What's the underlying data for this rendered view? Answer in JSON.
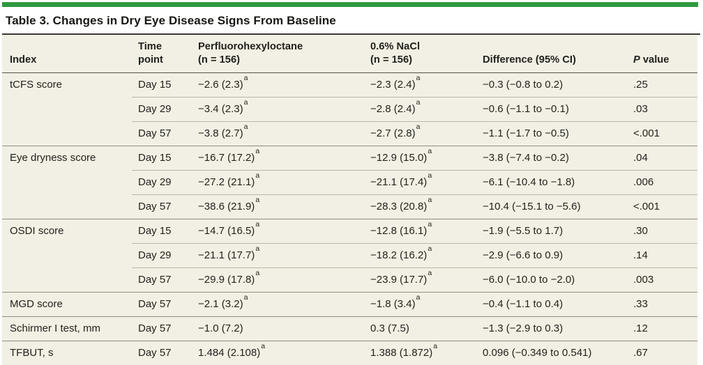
{
  "colors": {
    "accent_green": "#2e9a3f",
    "table_background": "#f2efe4",
    "bottom_rule": "#22201b"
  },
  "table": {
    "title": "Table 3. Changes in Dry Eye Disease Signs From Baseline",
    "header": {
      "index": "Index",
      "time": [
        "Time",
        "point"
      ],
      "drug": [
        "Perfluorohexyloctane",
        "(n = 156)"
      ],
      "nacl": [
        "0.6% NaCl",
        "(n = 156)"
      ],
      "diff": "Difference (95% CI)",
      "p_italic": "P",
      "p_rest": "value"
    },
    "footnote_marker": "a",
    "rows": [
      {
        "group_start": true,
        "index": "tCFS score",
        "time": "Day 15",
        "drug": "−2.6 (2.3)",
        "drug_sup": "a",
        "nacl": "−2.3 (2.4)",
        "nacl_sup": "a",
        "diff": "−0.3 (−0.8 to 0.2)",
        "p": ".25"
      },
      {
        "group_start": false,
        "index": "",
        "time": "Day 29",
        "drug": "−3.4 (2.3)",
        "drug_sup": "a",
        "nacl": "−2.8 (2.4)",
        "nacl_sup": "a",
        "diff": "−0.6 (−1.1 to −0.1)",
        "p": ".03"
      },
      {
        "group_start": false,
        "index": "",
        "time": "Day 57",
        "drug": "−3.8 (2.7)",
        "drug_sup": "a",
        "nacl": "−2.7 (2.8)",
        "nacl_sup": "a",
        "diff": "−1.1 (−1.7 to −0.5)",
        "p": "<.001"
      },
      {
        "group_start": true,
        "index": "Eye dryness score",
        "time": "Day 15",
        "drug": "−16.7 (17.2)",
        "drug_sup": "a",
        "nacl": "−12.9 (15.0)",
        "nacl_sup": "a",
        "diff": "−3.8 (−7.4 to −0.2)",
        "p": ".04"
      },
      {
        "group_start": false,
        "index": "",
        "time": "Day 29",
        "drug": "−27.2 (21.1)",
        "drug_sup": "a",
        "nacl": "−21.1 (17.4)",
        "nacl_sup": "a",
        "diff": "−6.1 (−10.4 to −1.8)",
        "p": ".006"
      },
      {
        "group_start": false,
        "index": "",
        "time": "Day 57",
        "drug": "−38.6 (21.9)",
        "drug_sup": "a",
        "nacl": "−28.3 (20.8)",
        "nacl_sup": "a",
        "diff": "−10.4 (−15.1 to −5.6)",
        "p": "<.001"
      },
      {
        "group_start": true,
        "index": "OSDI score",
        "time": "Day 15",
        "drug": "−14.7 (16.5)",
        "drug_sup": "a",
        "nacl": "−12.8 (16.1)",
        "nacl_sup": "a",
        "diff": "−1.9 (−5.5 to 1.7)",
        "p": ".30"
      },
      {
        "group_start": false,
        "index": "",
        "time": "Day 29",
        "drug": "−21.1 (17.7)",
        "drug_sup": "a",
        "nacl": "−18.2 (16.2)",
        "nacl_sup": "a",
        "diff": "−2.9 (−6.6 to 0.9)",
        "p": ".14"
      },
      {
        "group_start": false,
        "index": "",
        "time": "Day 57",
        "drug": "−29.9 (17.8)",
        "drug_sup": "a",
        "nacl": "−23.9 (17.7)",
        "nacl_sup": "a",
        "diff": "−6.0 (−10.0 to −2.0)",
        "p": ".003"
      },
      {
        "group_start": true,
        "index": "MGD score",
        "time": "Day 57",
        "drug": "−2.1 (3.2)",
        "drug_sup": "a",
        "nacl": "−1.8 (3.4)",
        "nacl_sup": "a",
        "diff": "−0.4 (−1.1 to 0.4)",
        "p": ".33"
      },
      {
        "group_start": true,
        "index": "Schirmer I test, mm",
        "time": "Day 57",
        "drug": "−1.0 (7.2)",
        "drug_sup": "",
        "nacl": "0.3 (7.5)",
        "nacl_sup": "",
        "diff": "−1.3 (−2.9 to 0.3)",
        "p": ".12"
      },
      {
        "group_start": true,
        "index": "TFBUT, s",
        "time": "Day 57",
        "drug": "1.484 (2.108)",
        "drug_sup": "a",
        "nacl": "1.388 (1.872)",
        "nacl_sup": "a",
        "diff": "0.096 (−0.349 to 0.541)",
        "p": ".67"
      }
    ]
  }
}
